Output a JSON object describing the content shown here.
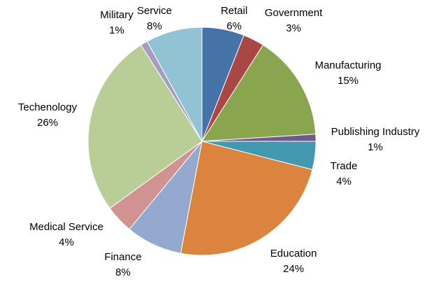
{
  "chart_data": {
    "type": "pie",
    "title": "",
    "start_angle_deg": 0,
    "direction": "clockwise",
    "slices": [
      {
        "label": "Retail",
        "value": 6,
        "value_label": "6%",
        "color": "#4572A7"
      },
      {
        "label": "Government",
        "value": 3,
        "value_label": "3%",
        "color": "#AA4643"
      },
      {
        "label": "Manufacturing",
        "value": 15,
        "value_label": "15%",
        "color": "#89A54E"
      },
      {
        "label": "Publishing Industry",
        "value": 1,
        "value_label": "1%",
        "color": "#71588F"
      },
      {
        "label": "Trade",
        "value": 4,
        "value_label": "4%",
        "color": "#4198AF"
      },
      {
        "label": "Education",
        "value": 24,
        "value_label": "24%",
        "color": "#DB843D"
      },
      {
        "label": "Finance",
        "value": 8,
        "value_label": "8%",
        "color": "#93A9CF"
      },
      {
        "label": "Medical Service",
        "value": 4,
        "value_label": "4%",
        "color": "#D19392"
      },
      {
        "label": "Techenology",
        "value": 26,
        "value_label": "26%",
        "color": "#B9CD96"
      },
      {
        "label": "Military",
        "value": 1,
        "value_label": "1%",
        "color": "#A99BBD"
      },
      {
        "label": "Service",
        "value": 8,
        "value_label": "8%",
        "color": "#92C3D4"
      }
    ]
  }
}
